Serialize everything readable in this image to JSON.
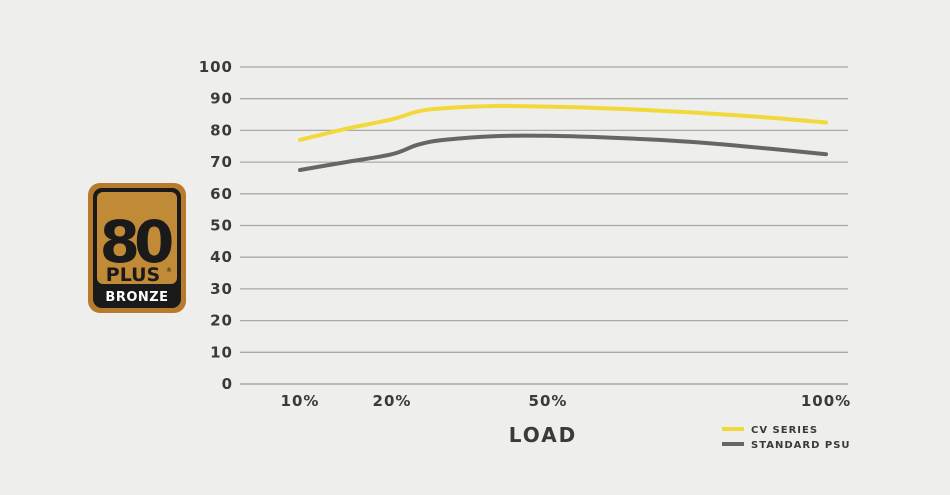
{
  "badge": {
    "number": "80",
    "plus": "PLUS",
    "registered": "®",
    "tier": "BRONZE",
    "colors": {
      "outer": "#b87a2c",
      "inner": "#c08a37",
      "dark": "#1a1a1a"
    }
  },
  "chart_data": {
    "type": "line",
    "title": "",
    "xlabel": "LOAD",
    "ylabel": "",
    "ylim": [
      0,
      100
    ],
    "yticks": [
      "0",
      "10",
      "20",
      "30",
      "40",
      "50",
      "60",
      "70",
      "80",
      "90",
      "100"
    ],
    "x_tick_labels": [
      "10%",
      "20%",
      "50%",
      "100%"
    ],
    "x_tick_values": [
      10,
      20,
      50,
      100
    ],
    "grid": true,
    "legend_position": "bottom-right",
    "series": [
      {
        "name": "CV SERIES",
        "color": "#f2d93b",
        "x": [
          10,
          15,
          20,
          25,
          30,
          40,
          50,
          60,
          70,
          80,
          90,
          100
        ],
        "y": [
          77,
          80.5,
          83.5,
          86,
          87,
          87.7,
          87.5,
          87,
          86.2,
          85.2,
          84,
          82.5
        ]
      },
      {
        "name": "STANDARD PSU",
        "color": "#666666",
        "x": [
          10,
          15,
          20,
          25,
          30,
          40,
          50,
          60,
          70,
          80,
          90,
          100
        ],
        "y": [
          67.5,
          70,
          72.5,
          75.5,
          77,
          78.2,
          78.3,
          77.8,
          77,
          75.8,
          74.2,
          72.5
        ]
      }
    ]
  }
}
